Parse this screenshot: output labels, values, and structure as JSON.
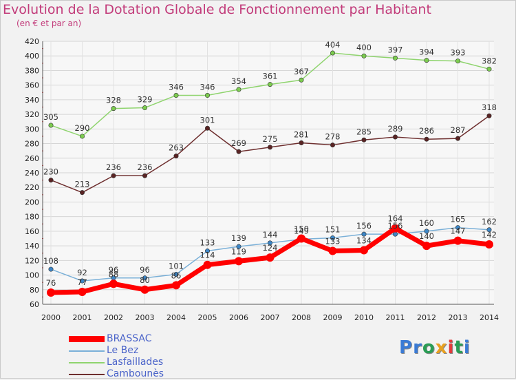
{
  "title": "Evolution de la Dotation Globale de Fonctionnement par Habitant",
  "subtitle": "(en € et par an)",
  "logo": {
    "text": "Proxiti",
    "letter_colors": [
      "#3a7bd5",
      "#3a7bd5",
      "#2a9d55",
      "#e8a020",
      "#e23b3b",
      "#2a9d55",
      "#3a7bd5"
    ]
  },
  "chart_data": {
    "type": "line",
    "title": "Evolution de la Dotation Globale de Fonctionnement par Habitant",
    "subtitle": "(en € et par an)",
    "xlabel": "",
    "ylabel": "",
    "x": [
      "2000",
      "2001",
      "2002",
      "2003",
      "2004",
      "2005",
      "2006",
      "2007",
      "2008",
      "2009",
      "2010",
      "2011",
      "2012",
      "2013",
      "2014"
    ],
    "ylim": [
      60,
      420
    ],
    "yticks": [
      60,
      80,
      100,
      120,
      140,
      160,
      180,
      200,
      220,
      240,
      260,
      280,
      300,
      320,
      340,
      360,
      380,
      400,
      420
    ],
    "grid": true,
    "legend_position": "bottom-left",
    "series": [
      {
        "name": "Lasfaillades",
        "color": "#8fd46e",
        "marker": "#7ccc4f",
        "values": [
          305,
          290,
          328,
          329,
          346,
          346,
          354,
          361,
          367,
          404,
          400,
          397,
          394,
          393,
          382
        ]
      },
      {
        "name": "Cambounès",
        "color": "#6e2f2f",
        "marker": "#5a2424",
        "values": [
          230,
          213,
          236,
          236,
          263,
          301,
          269,
          275,
          281,
          278,
          285,
          289,
          286,
          287,
          318
        ]
      },
      {
        "name": "Le Bez",
        "color": "#7ab0d8",
        "marker": "#3d86c6",
        "values": [
          108,
          92,
          96,
          96,
          101,
          133,
          139,
          144,
          149,
          151,
          156,
          156,
          160,
          165,
          162
        ]
      },
      {
        "name": "BRASSAC",
        "color": "#ff0000",
        "marker": "#ff0000",
        "values": [
          76,
          77,
          88,
          80,
          86,
          114,
          119,
          124,
          150,
          133,
          134,
          164,
          140,
          147,
          142
        ]
      }
    ],
    "legend_order": [
      "BRASSAC",
      "Le Bez",
      "Lasfaillades",
      "Cambounès"
    ]
  }
}
